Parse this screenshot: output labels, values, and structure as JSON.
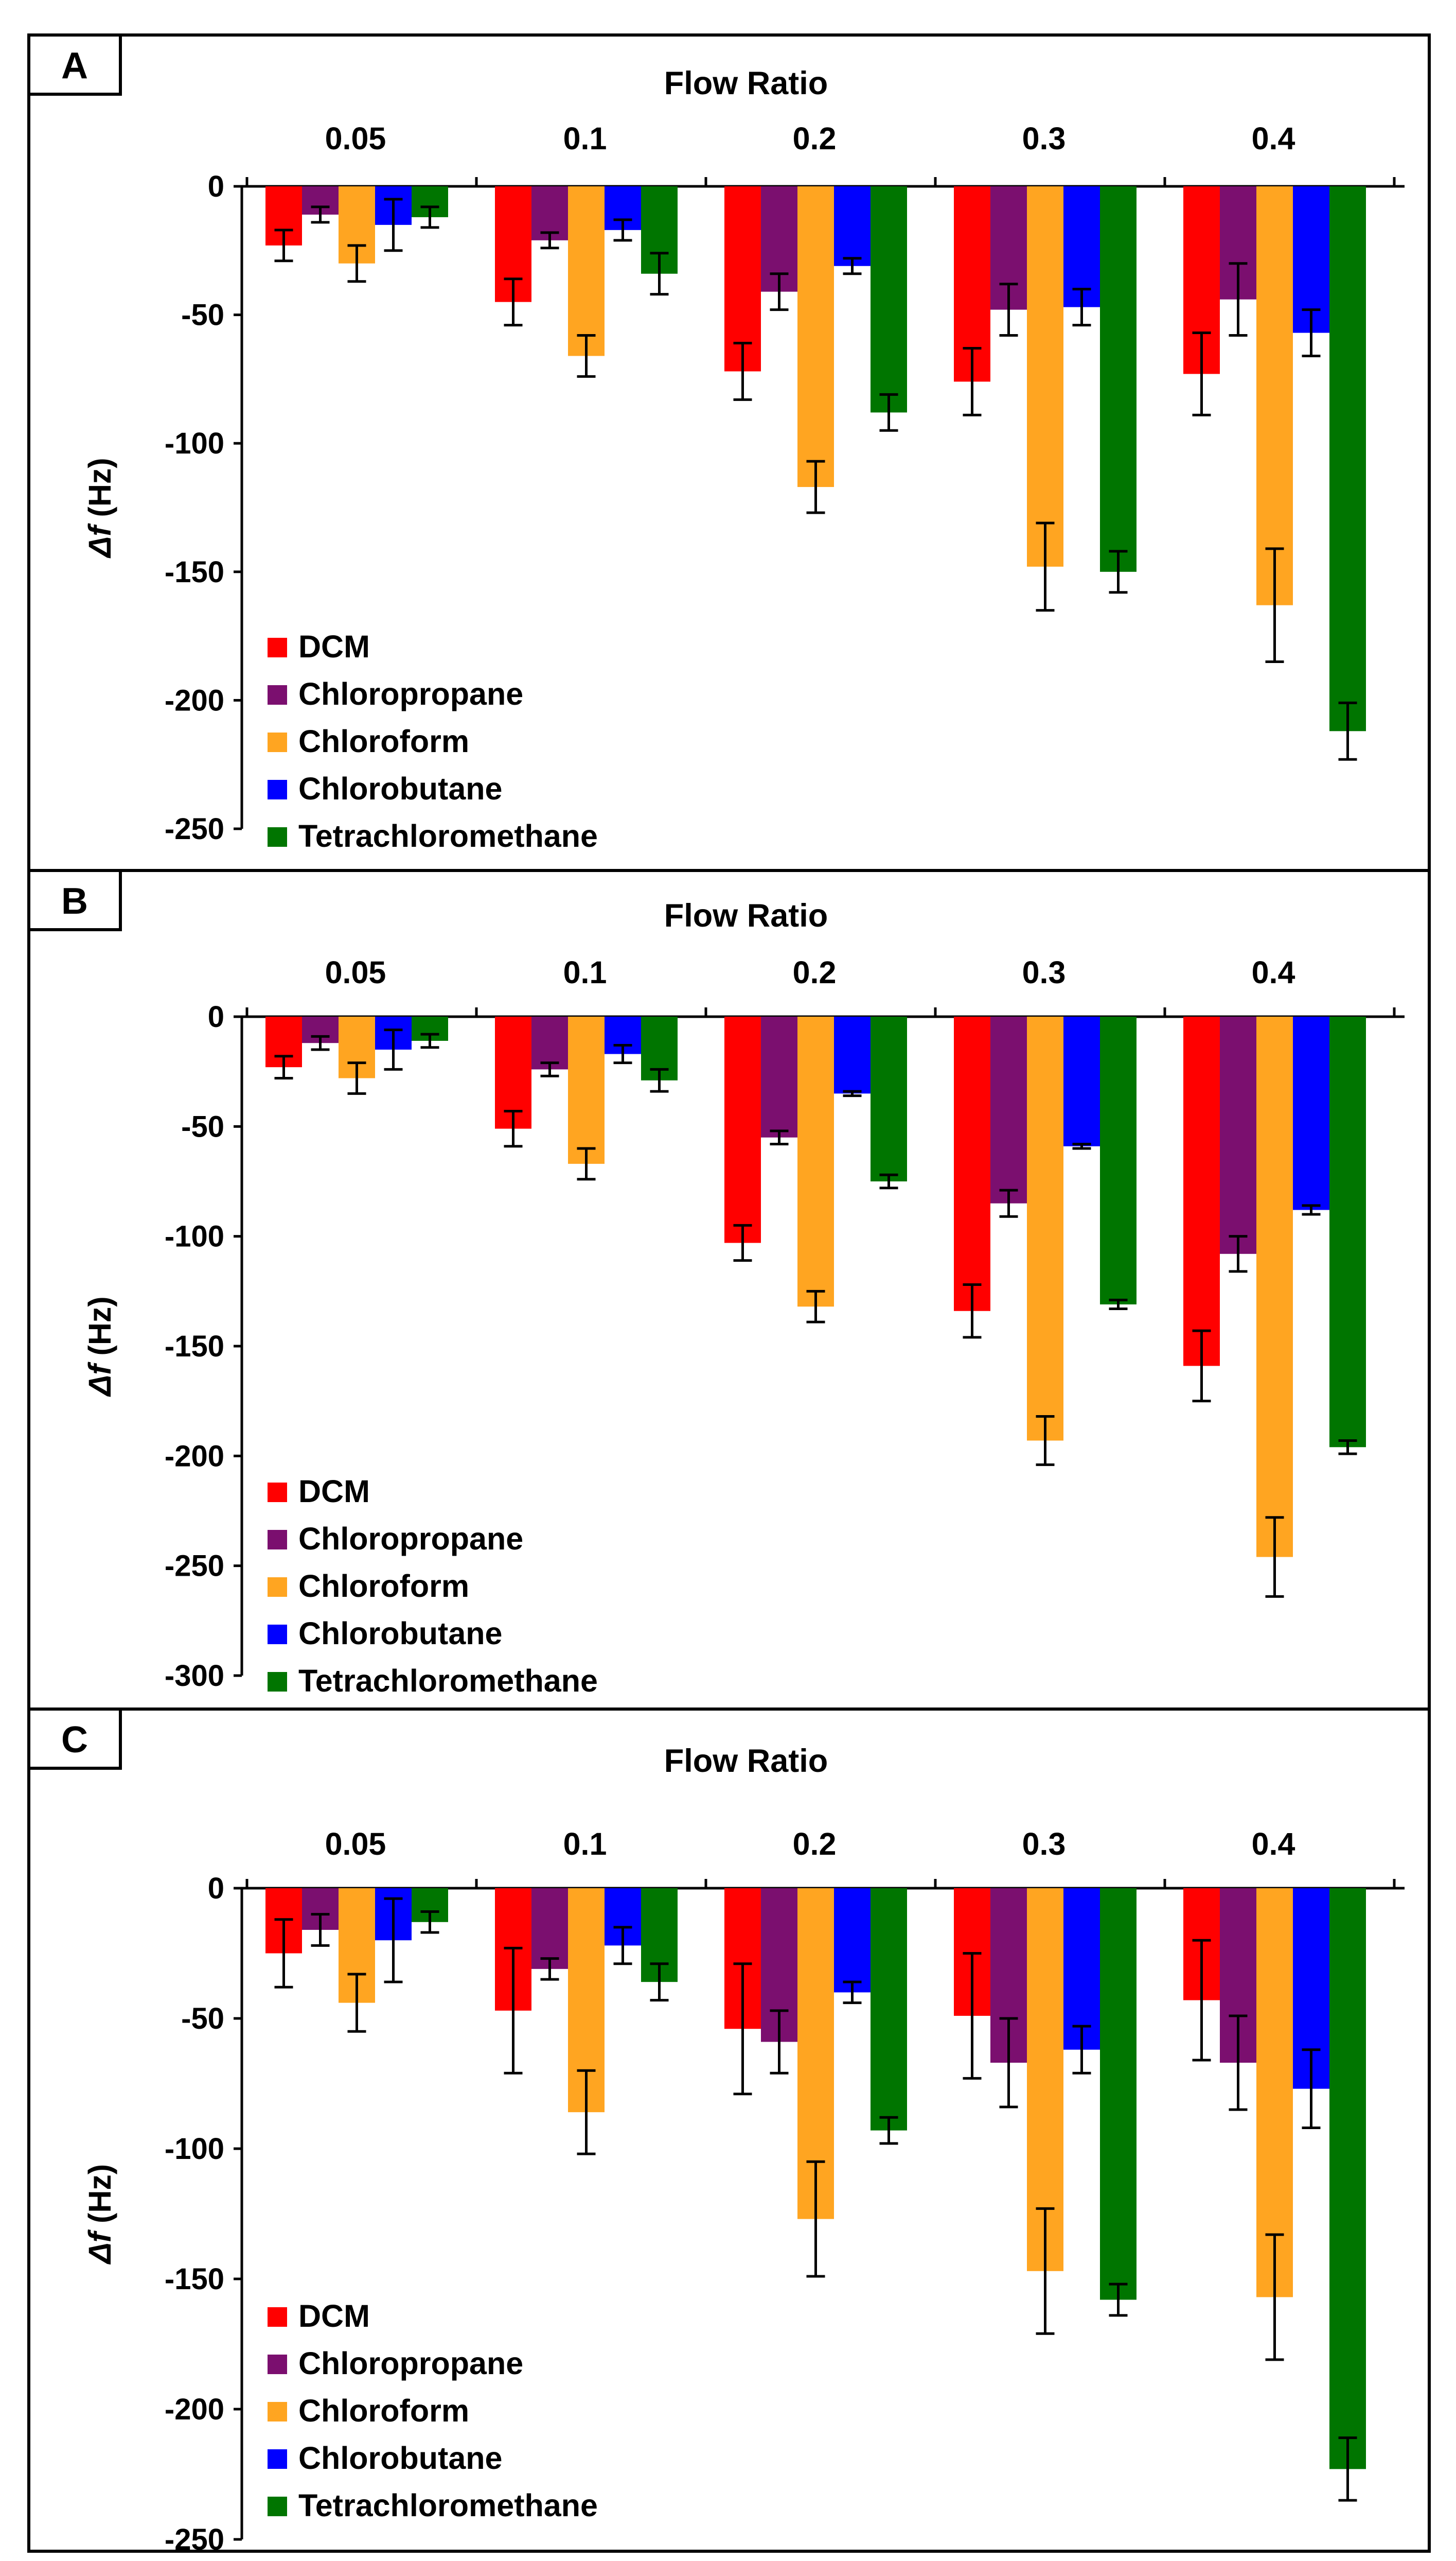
{
  "figure": {
    "series_names": [
      "DCM",
      "Chloropropane",
      "Chloroform",
      "Chlorobutane",
      "Tetrachloromethane"
    ],
    "series_colors": [
      "#ff0000",
      "#7b0f6f",
      "#ffa521",
      "#0000ff",
      "#007500"
    ]
  },
  "chart_data": [
    {
      "panel": "A",
      "type": "bar",
      "title": "Flow Ratio",
      "xlabel": "Flow Ratio",
      "ylabel_symbol": "Δf",
      "ylabel_unit": "(Hz)",
      "categories": [
        "0.05",
        "0.1",
        "0.2",
        "0.3",
        "0.4"
      ],
      "ylim": [
        -250,
        0
      ],
      "yticks": [
        0,
        -50,
        -100,
        -150,
        -200,
        -250
      ],
      "y_tick_labels": [
        "0",
        "-50",
        "-100",
        "-150",
        "-200",
        "-250"
      ],
      "series": [
        {
          "name": "DCM",
          "values": [
            -23,
            -45,
            -72,
            -76,
            -73
          ],
          "errors": [
            6,
            9,
            11,
            13,
            16
          ]
        },
        {
          "name": "Chloropropane",
          "values": [
            -11,
            -21,
            -41,
            -48,
            -44
          ],
          "errors": [
            3,
            3,
            7,
            10,
            14
          ]
        },
        {
          "name": "Chloroform",
          "values": [
            -30,
            -66,
            -117,
            -148,
            -163
          ],
          "errors": [
            7,
            8,
            10,
            17,
            22
          ]
        },
        {
          "name": "Chlorobutane",
          "values": [
            -15,
            -17,
            -31,
            -47,
            -57
          ],
          "errors": [
            10,
            4,
            3,
            7,
            9
          ]
        },
        {
          "name": "Tetrachloromethane",
          "values": [
            -12,
            -34,
            -88,
            -150,
            -212
          ],
          "errors": [
            4,
            8,
            7,
            8,
            11
          ]
        }
      ]
    },
    {
      "panel": "B",
      "type": "bar",
      "title": "Flow Ratio",
      "xlabel": "Flow Ratio",
      "ylabel_symbol": "Δf",
      "ylabel_unit": "(Hz)",
      "categories": [
        "0.05",
        "0.1",
        "0.2",
        "0.3",
        "0.4"
      ],
      "ylim": [
        -300,
        0
      ],
      "yticks": [
        0,
        -50,
        -100,
        -150,
        -200,
        -250,
        -300
      ],
      "y_tick_labels": [
        "0",
        "-50",
        "-100",
        "-150",
        "-200",
        "-250",
        "-300"
      ],
      "series": [
        {
          "name": "DCM",
          "values": [
            -23,
            -51,
            -103,
            -134,
            -159
          ],
          "errors": [
            5,
            8,
            8,
            12,
            16
          ]
        },
        {
          "name": "Chloropropane",
          "values": [
            -12,
            -24,
            -55,
            -85,
            -108
          ],
          "errors": [
            3,
            3,
            3,
            6,
            8
          ]
        },
        {
          "name": "Chloroform",
          "values": [
            -28,
            -67,
            -132,
            -193,
            -246
          ],
          "errors": [
            7,
            7,
            7,
            11,
            18
          ]
        },
        {
          "name": "Chlorobutane",
          "values": [
            -15,
            -17,
            -35,
            -59,
            -88
          ],
          "errors": [
            9,
            4,
            1,
            1,
            2
          ]
        },
        {
          "name": "Tetrachloromethane",
          "values": [
            -11,
            -29,
            -75,
            -131,
            -196
          ],
          "errors": [
            3,
            5,
            3,
            2,
            3
          ]
        }
      ]
    },
    {
      "panel": "C",
      "type": "bar",
      "title": "Flow Ratio",
      "xlabel": "Flow Ratio",
      "ylabel_symbol": "Δf",
      "ylabel_unit": "(Hz)",
      "categories": [
        "0.05",
        "0.1",
        "0.2",
        "0.3",
        "0.4"
      ],
      "ylim": [
        -250,
        0
      ],
      "yticks": [
        0,
        -50,
        -100,
        -150,
        -200,
        -250
      ],
      "y_tick_labels": [
        "0",
        "-50",
        "-100",
        "-150",
        "-200",
        "-250"
      ],
      "series": [
        {
          "name": "DCM",
          "values": [
            -25,
            -47,
            -54,
            -49,
            -43
          ],
          "errors": [
            13,
            24,
            25,
            24,
            23
          ]
        },
        {
          "name": "Chloropropane",
          "values": [
            -16,
            -31,
            -59,
            -67,
            -67
          ],
          "errors": [
            6,
            4,
            12,
            17,
            18
          ]
        },
        {
          "name": "Chloroform",
          "values": [
            -44,
            -86,
            -127,
            -147,
            -157
          ],
          "errors": [
            11,
            16,
            22,
            24,
            24
          ]
        },
        {
          "name": "Chlorobutane",
          "values": [
            -20,
            -22,
            -40,
            -62,
            -77
          ],
          "errors": [
            16,
            7,
            4,
            9,
            15
          ]
        },
        {
          "name": "Tetrachloromethane",
          "values": [
            -13,
            -36,
            -93,
            -158,
            -223
          ],
          "errors": [
            4,
            7,
            5,
            6,
            12
          ]
        }
      ]
    }
  ]
}
